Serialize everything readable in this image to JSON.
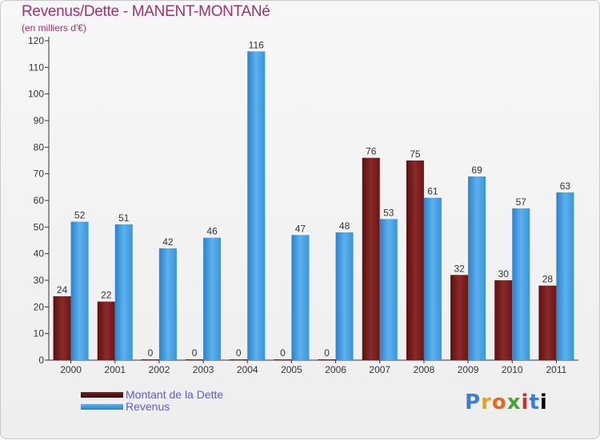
{
  "chart_data": {
    "type": "bar",
    "title": "Revenus/Dette - MANENT-MONTANé",
    "subtitle": "(en milliers d'€)",
    "categories": [
      "2000",
      "2001",
      "2002",
      "2003",
      "2004",
      "2005",
      "2006",
      "2007",
      "2008",
      "2009",
      "2010",
      "2011"
    ],
    "series": [
      {
        "name": "Montant de la Dette",
        "color": "#7a1f1f",
        "values": [
          24,
          22,
          0,
          0,
          0,
          0,
          0,
          76,
          75,
          32,
          30,
          28
        ]
      },
      {
        "name": "Revenus",
        "color": "#3d96dc",
        "values": [
          52,
          51,
          42,
          46,
          116,
          47,
          48,
          53,
          61,
          69,
          57,
          63
        ]
      }
    ],
    "ylim": [
      0,
      120
    ],
    "yticks": [
      0,
      10,
      20,
      30,
      40,
      50,
      60,
      70,
      80,
      90,
      100,
      110,
      120
    ],
    "grid": false,
    "legend_position": "bottom-left"
  },
  "brand": {
    "letters": [
      "P",
      "r",
      "o",
      "x",
      "i",
      "t",
      "i"
    ]
  }
}
